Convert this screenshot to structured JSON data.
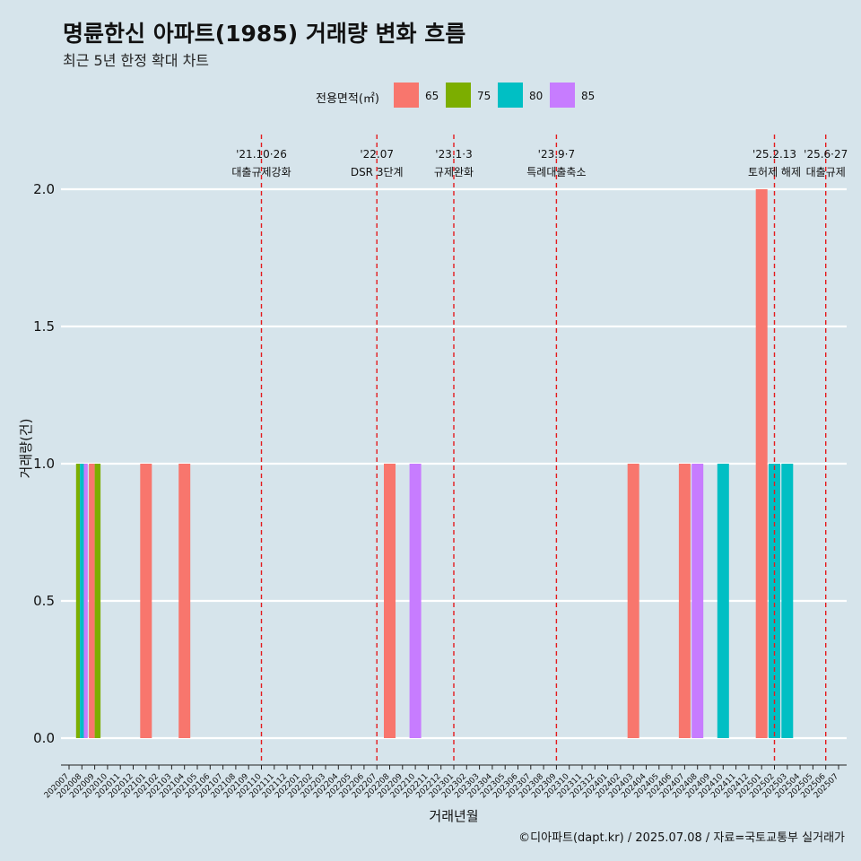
{
  "title": "명륜한신 아파트(1985) 거래량 변화 흐름",
  "subtitle": "최근 5년 한정 확대 차트",
  "caption": "©디아파트(dapt.kr) / 2025.07.08 / 자료=국토교통부 실거래가",
  "colors": {
    "65": "#F8766D",
    "75": "#7CAE00",
    "80": "#00BFC4",
    "85": "#C77CFF",
    "background": "#d6e4eb",
    "event_line": "#e41a1c"
  },
  "chart_data": {
    "type": "bar",
    "title": "명륜한신 아파트(1985) 거래량 변화 흐름",
    "subtitle": "최근 5년 한정 확대 차트",
    "xlabel": "거래년월",
    "ylabel": "거래량(건)",
    "ylim": [
      -0.09,
      2.2
    ],
    "yticks": [
      0.0,
      0.5,
      1.0,
      1.5,
      2.0
    ],
    "ytick_labels": [
      "0.0",
      "0.5",
      "1.0",
      "1.5",
      "2.0"
    ],
    "grid": true,
    "legend": {
      "title": "전용면적(㎡)",
      "position": "top",
      "entries": [
        "65",
        "75",
        "80",
        "85"
      ]
    },
    "categories": [
      "202007",
      "202008",
      "202009",
      "202010",
      "202011",
      "202012",
      "202101",
      "202102",
      "202103",
      "202104",
      "202105",
      "202106",
      "202107",
      "202108",
      "202109",
      "202110",
      "202111",
      "202112",
      "202201",
      "202202",
      "202203",
      "202204",
      "202205",
      "202206",
      "202207",
      "202208",
      "202209",
      "202210",
      "202211",
      "202212",
      "202301",
      "202302",
      "202303",
      "202304",
      "202305",
      "202306",
      "202307",
      "202308",
      "202309",
      "202310",
      "202311",
      "202312",
      "202401",
      "202402",
      "202403",
      "202404",
      "202405",
      "202406",
      "202407",
      "202408",
      "202409",
      "202410",
      "202411",
      "202412",
      "202501",
      "202502",
      "202503",
      "202504",
      "202505",
      "202506",
      "202507"
    ],
    "bars": [
      {
        "month": "202008",
        "area": "75",
        "value": 1
      },
      {
        "month": "202008",
        "area": "80",
        "value": 1
      },
      {
        "month": "202008",
        "area": "85",
        "value": 1
      },
      {
        "month": "202009",
        "area": "65",
        "value": 1
      },
      {
        "month": "202009",
        "area": "75",
        "value": 1
      },
      {
        "month": "202101",
        "area": "65",
        "value": 1
      },
      {
        "month": "202104",
        "area": "65",
        "value": 1
      },
      {
        "month": "202208",
        "area": "65",
        "value": 1
      },
      {
        "month": "202210",
        "area": "85",
        "value": 1
      },
      {
        "month": "202403",
        "area": "65",
        "value": 1
      },
      {
        "month": "202407",
        "area": "65",
        "value": 1
      },
      {
        "month": "202408",
        "area": "85",
        "value": 1
      },
      {
        "month": "202410",
        "area": "80",
        "value": 1
      },
      {
        "month": "202501",
        "area": "65",
        "value": 2
      },
      {
        "month": "202502",
        "area": "80",
        "value": 1
      },
      {
        "month": "202503",
        "area": "80",
        "value": 1
      }
    ],
    "annotations": [
      {
        "month": "202110",
        "date": "'21.10·26",
        "text": "대출규제강화"
      },
      {
        "month": "202207",
        "date": "'22.07",
        "text": "DSR 3단계"
      },
      {
        "month": "202301",
        "date": "'23.1·3",
        "text": "규제완화"
      },
      {
        "month": "202309",
        "date": "'23.9·7",
        "text": "특례대출축소"
      },
      {
        "month": "202502",
        "date": "'25.2.13",
        "text": "토허제 해제"
      },
      {
        "month": "202506",
        "date": "'25.6·27",
        "text": "대출규제"
      }
    ]
  }
}
